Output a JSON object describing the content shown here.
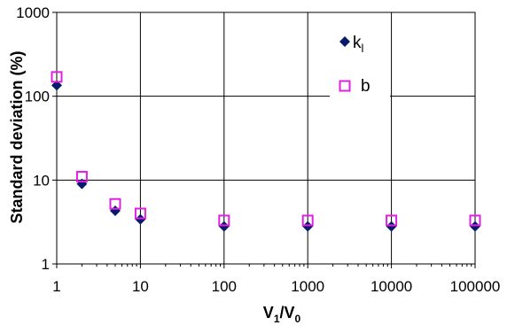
{
  "chart_data": {
    "type": "scatter",
    "x_scale": "log",
    "y_scale": "log",
    "x": [
      1,
      2,
      5,
      10,
      100,
      1000,
      10000,
      100000
    ],
    "xlim": [
      1,
      100000
    ],
    "ylim": [
      1,
      1000
    ],
    "x_ticks": [
      "1",
      "10",
      "100",
      "1000",
      "10000",
      "100000"
    ],
    "y_ticks": [
      "1",
      "10",
      "100",
      "1000"
    ],
    "xlabel_main": "V",
    "xlabel_sub1": "1",
    "xlabel_mid": "/V",
    "xlabel_sub2": "0",
    "ylabel": "Standard deviation (%)",
    "grid": true,
    "legend_position": "top-right inside plot",
    "series": [
      {
        "name_main": "k",
        "name_sub": "l",
        "marker": "filled-diamond",
        "color": "#0a1a6b",
        "values": [
          135,
          9.0,
          4.3,
          3.4,
          2.8,
          2.8,
          2.8,
          2.8
        ]
      },
      {
        "name_main": "b",
        "name_sub": "",
        "marker": "open-square",
        "color": "#e020e0",
        "values": [
          170,
          11.0,
          5.2,
          4.0,
          3.3,
          3.3,
          3.3,
          3.3
        ]
      }
    ]
  }
}
